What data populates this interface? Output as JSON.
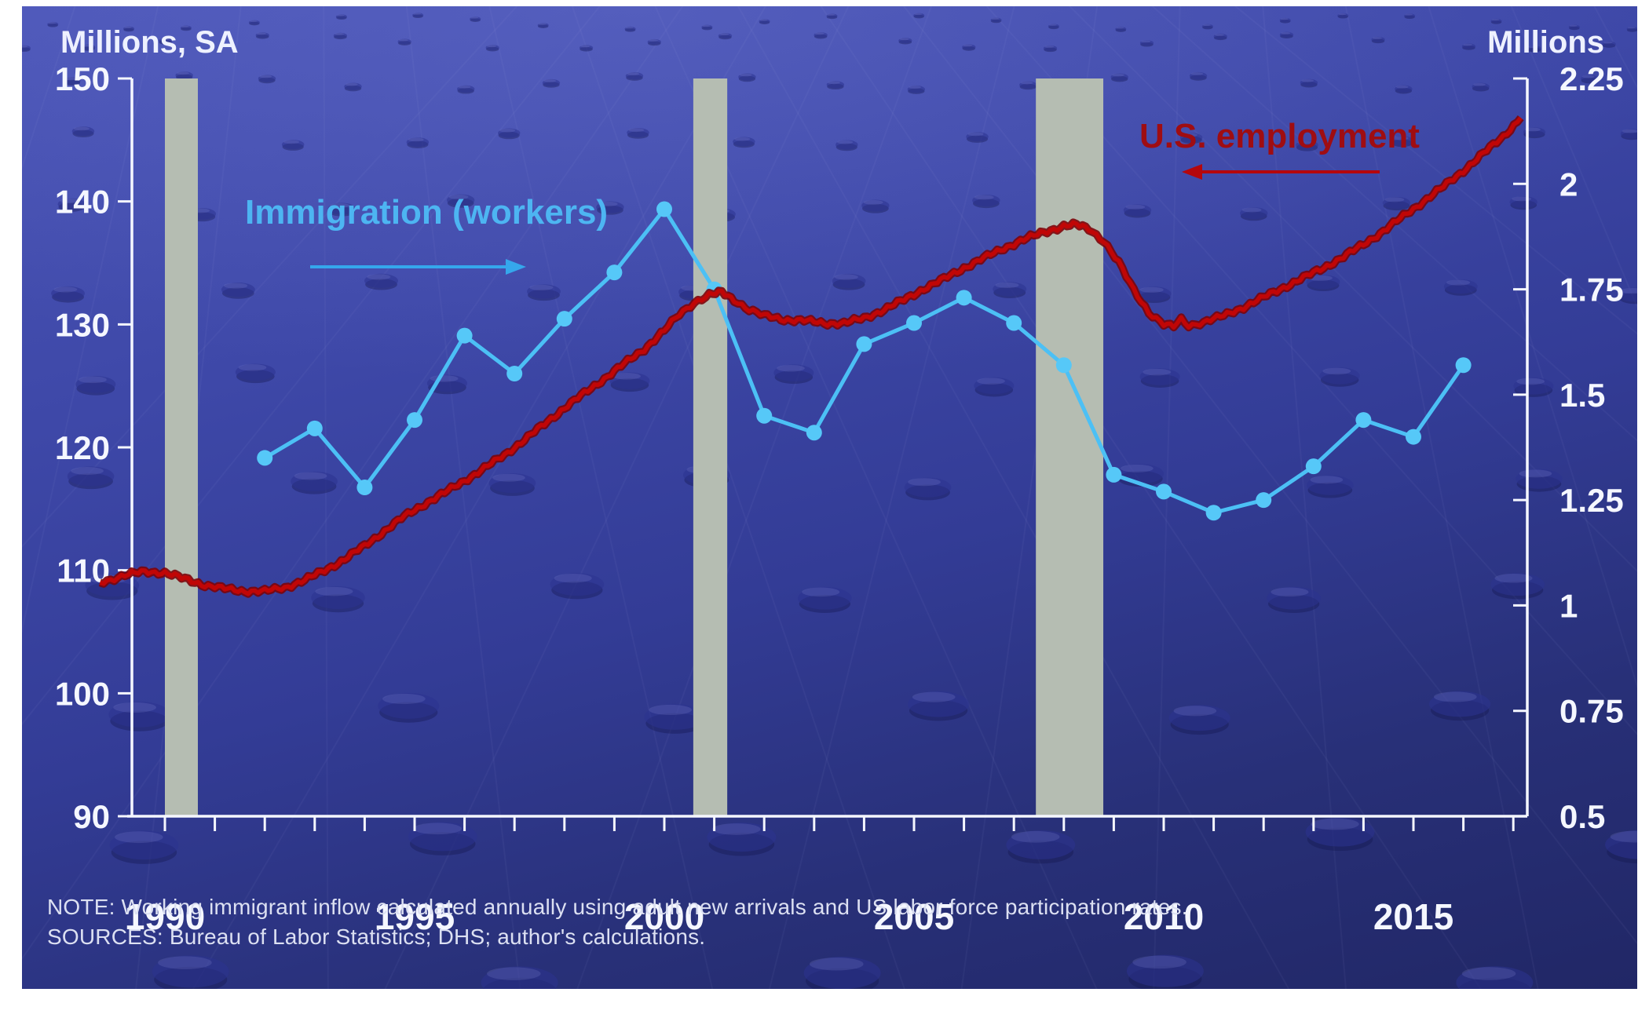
{
  "chart_data": {
    "type": "line",
    "left_axis": {
      "title": "Millions, SA",
      "min": 90,
      "max": 150,
      "ticks": [
        150,
        140,
        130,
        120,
        110,
        100,
        90
      ]
    },
    "right_axis": {
      "title": "Millions",
      "min": 0.5,
      "max": 2.25,
      "ticks": [
        2.25,
        2,
        1.75,
        1.5,
        1.25,
        1,
        0.75,
        0.5
      ],
      "tick_labels": [
        "2.25",
        "2",
        "1.75",
        "1.5",
        "1.25",
        "1",
        "0.75",
        "0.5"
      ]
    },
    "x_axis": {
      "tick_start": 1990,
      "tick_end": 2017,
      "tick_step": 1,
      "label_years": [
        1990,
        1995,
        2000,
        2005,
        2010,
        2015
      ]
    },
    "recessions": {
      "color": "#b5bdb2",
      "year_ranges": [
        [
          1990.0,
          1990.66
        ],
        [
          2000.58,
          2001.26
        ],
        [
          2007.44,
          2008.79
        ]
      ]
    },
    "series": [
      {
        "name": "Immigration (workers)",
        "axis": "right",
        "color": "#4cc0f5",
        "marker_color": "#56c8f8",
        "points": [
          [
            1992,
            1.35
          ],
          [
            1993,
            1.42
          ],
          [
            1994,
            1.28
          ],
          [
            1995,
            1.44
          ],
          [
            1996,
            1.64
          ],
          [
            1997,
            1.55
          ],
          [
            1998,
            1.68
          ],
          [
            1999,
            1.79
          ],
          [
            2000,
            1.94
          ],
          [
            2001,
            1.75
          ],
          [
            2002,
            1.45
          ],
          [
            2003,
            1.41
          ],
          [
            2004,
            1.62
          ],
          [
            2005,
            1.67
          ],
          [
            2006,
            1.73
          ],
          [
            2007,
            1.67
          ],
          [
            2008,
            1.57
          ],
          [
            2009,
            1.31
          ],
          [
            2010,
            1.27
          ],
          [
            2011,
            1.22
          ],
          [
            2012,
            1.25
          ],
          [
            2013,
            1.33
          ],
          [
            2014,
            1.44
          ],
          [
            2015,
            1.4
          ],
          [
            2016,
            1.57
          ]
        ]
      },
      {
        "name": "U.S. employment",
        "axis": "left",
        "color": "#c00606",
        "points": [
          [
            1988.7,
            109.0
          ],
          [
            1989.2,
            109.6
          ],
          [
            1989.6,
            109.9
          ],
          [
            1990.0,
            109.8
          ],
          [
            1990.4,
            109.3
          ],
          [
            1990.8,
            108.8
          ],
          [
            1991.2,
            108.5
          ],
          [
            1991.6,
            108.3
          ],
          [
            1992.0,
            108.3
          ],
          [
            1992.4,
            108.6
          ],
          [
            1992.8,
            109.2
          ],
          [
            1993.2,
            110.0
          ],
          [
            1993.6,
            110.9
          ],
          [
            1994.0,
            112.0
          ],
          [
            1994.4,
            113.2
          ],
          [
            1994.8,
            114.4
          ],
          [
            1995.2,
            115.4
          ],
          [
            1995.6,
            116.3
          ],
          [
            1996.0,
            117.3
          ],
          [
            1996.4,
            118.3
          ],
          [
            1996.8,
            119.4
          ],
          [
            1997.2,
            120.6
          ],
          [
            1997.6,
            121.9
          ],
          [
            1998.0,
            123.2
          ],
          [
            1998.4,
            124.4
          ],
          [
            1998.8,
            125.6
          ],
          [
            1999.2,
            126.8
          ],
          [
            1999.6,
            128.0
          ],
          [
            2000.0,
            129.5
          ],
          [
            2000.3,
            130.8
          ],
          [
            2000.6,
            131.8
          ],
          [
            2000.9,
            132.4
          ],
          [
            2001.15,
            132.6
          ],
          [
            2001.4,
            132.0
          ],
          [
            2001.7,
            131.2
          ],
          [
            2002.0,
            130.7
          ],
          [
            2002.4,
            130.4
          ],
          [
            2002.8,
            130.3
          ],
          [
            2003.2,
            130.1
          ],
          [
            2003.6,
            130.1
          ],
          [
            2004.0,
            130.5
          ],
          [
            2004.4,
            131.2
          ],
          [
            2004.8,
            132.0
          ],
          [
            2005.2,
            132.9
          ],
          [
            2005.6,
            133.7
          ],
          [
            2006.0,
            134.6
          ],
          [
            2006.4,
            135.4
          ],
          [
            2006.8,
            136.2
          ],
          [
            2007.2,
            136.9
          ],
          [
            2007.6,
            137.5
          ],
          [
            2008.0,
            138.0
          ],
          [
            2008.25,
            138.1
          ],
          [
            2008.5,
            137.8
          ],
          [
            2008.8,
            136.8
          ],
          [
            2009.1,
            135.0
          ],
          [
            2009.4,
            132.8
          ],
          [
            2009.7,
            131.0
          ],
          [
            2010.0,
            130.0
          ],
          [
            2010.2,
            129.8
          ],
          [
            2010.35,
            130.4
          ],
          [
            2010.5,
            129.9
          ],
          [
            2010.8,
            130.2
          ],
          [
            2011.2,
            130.7
          ],
          [
            2011.6,
            131.4
          ],
          [
            2012.0,
            132.2
          ],
          [
            2012.4,
            133.0
          ],
          [
            2012.8,
            133.8
          ],
          [
            2013.2,
            134.6
          ],
          [
            2013.6,
            135.5
          ],
          [
            2014.0,
            136.5
          ],
          [
            2014.4,
            137.6
          ],
          [
            2014.8,
            138.8
          ],
          [
            2015.2,
            140.0
          ],
          [
            2015.6,
            141.2
          ],
          [
            2016.0,
            142.5
          ],
          [
            2016.4,
            143.9
          ],
          [
            2016.8,
            145.3
          ],
          [
            2017.15,
            146.8
          ]
        ]
      }
    ],
    "annotations": {
      "immigration": {
        "text": "Immigration (workers)",
        "color": "#4db5f2",
        "arrow_color": "#35a7ec",
        "arrow_direction": "right"
      },
      "employment": {
        "text": "U.S. employment",
        "color": "#9f0d12",
        "arrow_color": "#b5070c",
        "arrow_direction": "left"
      }
    }
  },
  "footer": {
    "note": "NOTE: Working immigrant inflow calculated annually using adult new arrivals and US labor force participation rates.",
    "sources": "SOURCES: Bureau of Labor Statistics; DHS; author's calculations."
  }
}
